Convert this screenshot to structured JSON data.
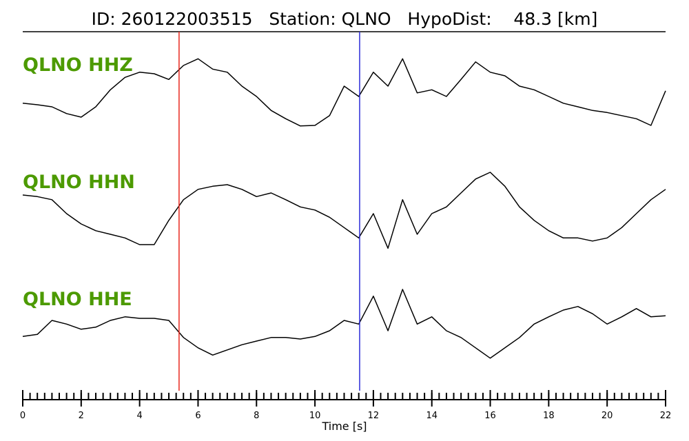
{
  "chart_data": {
    "type": "line",
    "title": "ID: 260122003515   Station: QLNO   HypoDist:    48.3 [km]",
    "x_label": "Time [s]",
    "xlim": [
      0,
      22
    ],
    "xticks": [
      0,
      2,
      4,
      6,
      8,
      10,
      12,
      14,
      16,
      18,
      20,
      22
    ],
    "xminor_step": 0.25,
    "ylim": [
      -1,
      1
    ],
    "vlines": [
      {
        "x": 5.35,
        "color": "#e8261c"
      },
      {
        "x": 11.53,
        "color": "#2a2ad8"
      }
    ],
    "x": [
      0,
      0.5,
      1,
      1.5,
      2,
      2.5,
      3,
      3.5,
      4,
      4.5,
      5,
      5.5,
      6,
      6.5,
      7,
      7.5,
      8,
      8.5,
      9,
      9.5,
      10,
      10.5,
      11,
      11.5,
      12,
      12.5,
      13,
      13.5,
      14,
      14.5,
      15,
      15.5,
      16,
      16.5,
      17,
      17.5,
      18,
      18.5,
      19,
      19.5,
      20,
      20.5,
      21,
      21.5,
      22
    ],
    "series": [
      {
        "name": "QLNO HHZ",
        "color": "#000000",
        "values": [
          -0.13,
          -0.16,
          -0.2,
          -0.33,
          -0.4,
          -0.2,
          0.13,
          0.37,
          0.47,
          0.44,
          0.33,
          0.6,
          0.73,
          0.53,
          0.47,
          0.2,
          0,
          -0.27,
          -0.43,
          -0.57,
          -0.56,
          -0.37,
          0.2,
          0,
          0.47,
          0.2,
          0.73,
          0.07,
          0.13,
          0,
          0.33,
          0.67,
          0.47,
          0.4,
          0.2,
          0.13,
          0,
          -0.13,
          -0.2,
          -0.27,
          -0.31,
          -0.37,
          -0.43,
          -0.56,
          0.11
        ]
      },
      {
        "name": "QLNO HHN",
        "color": "#000000",
        "values": [
          0.36,
          0.33,
          0.27,
          0,
          -0.2,
          -0.33,
          -0.4,
          -0.47,
          -0.6,
          -0.6,
          -0.13,
          0.27,
          0.47,
          0.53,
          0.56,
          0.47,
          0.33,
          0.4,
          0.27,
          0.13,
          0.07,
          -0.07,
          -0.27,
          -0.47,
          0,
          -0.67,
          0.27,
          -0.4,
          0,
          0.13,
          0.4,
          0.67,
          0.8,
          0.53,
          0.13,
          -0.13,
          -0.33,
          -0.47,
          -0.47,
          -0.53,
          -0.47,
          -0.27,
          0,
          0.27,
          0.47
        ]
      },
      {
        "name": "QLNO HHE",
        "color": "#000000",
        "values": [
          -0.11,
          -0.07,
          0.2,
          0.13,
          0.03,
          0.07,
          0.2,
          0.27,
          0.24,
          0.24,
          0.2,
          -0.13,
          -0.33,
          -0.47,
          -0.37,
          -0.27,
          -0.2,
          -0.13,
          -0.13,
          -0.16,
          -0.11,
          0,
          0.2,
          0.13,
          0.67,
          0,
          0.8,
          0.13,
          0.27,
          0,
          -0.13,
          -0.33,
          -0.53,
          -0.33,
          -0.13,
          0.13,
          0.27,
          0.4,
          0.47,
          0.33,
          0.13,
          0.27,
          0.43,
          0.27,
          0.29
        ]
      }
    ]
  }
}
